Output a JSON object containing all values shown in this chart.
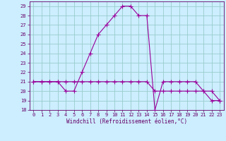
{
  "xlabel": "Windchill (Refroidissement éolien,°C)",
  "xlim": [
    -0.5,
    23.5
  ],
  "ylim": [
    18,
    29.5
  ],
  "yticks": [
    18,
    19,
    20,
    21,
    22,
    23,
    24,
    25,
    26,
    27,
    28,
    29
  ],
  "xticks": [
    0,
    1,
    2,
    3,
    4,
    5,
    6,
    7,
    8,
    9,
    10,
    11,
    12,
    13,
    14,
    15,
    16,
    17,
    18,
    19,
    20,
    21,
    22,
    23
  ],
  "background_color": "#cceeff",
  "grid_color": "#99cccc",
  "line_color": "#990099",
  "series1_x": [
    0,
    1,
    2,
    3,
    4,
    5,
    6,
    7,
    8,
    9,
    10,
    11,
    12,
    13,
    14,
    15,
    16,
    17,
    18,
    19,
    20,
    21,
    22,
    23
  ],
  "series1_y": [
    21,
    21,
    21,
    21,
    20,
    20,
    22,
    24,
    26,
    27,
    28,
    29,
    29,
    28,
    28,
    18,
    21,
    21,
    21,
    21,
    21,
    20,
    19,
    19
  ],
  "series2_x": [
    0,
    1,
    2,
    3,
    4,
    5,
    6,
    7,
    8,
    9,
    10,
    11,
    12,
    13,
    14,
    15,
    16,
    17,
    18,
    19,
    20,
    21,
    22,
    23
  ],
  "series2_y": [
    21,
    21,
    21,
    21,
    21,
    21,
    21,
    21,
    21,
    21,
    21,
    21,
    21,
    21,
    21,
    20,
    20,
    20,
    20,
    20,
    20,
    20,
    20,
    19
  ],
  "marker": "+",
  "markersize": 4,
  "linewidth": 0.8,
  "font_color": "#660066",
  "xlabel_fontsize": 5.5,
  "tick_fontsize": 5.0
}
